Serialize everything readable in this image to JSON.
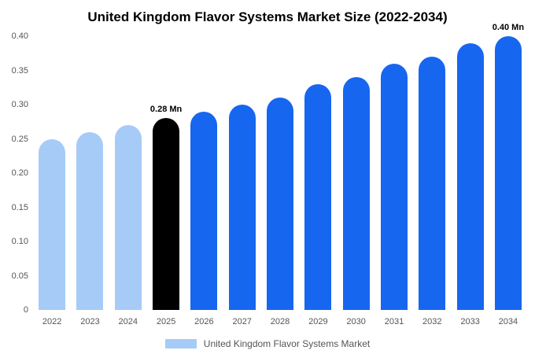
{
  "chart_data": {
    "type": "bar",
    "title": "United Kingdom Flavor Systems Market Size (2022-2034)",
    "xlabel": "",
    "ylabel": "",
    "unit": "Mn",
    "categories": [
      "2022",
      "2023",
      "2024",
      "2025",
      "2026",
      "2027",
      "2028",
      "2029",
      "2030",
      "2031",
      "2032",
      "2033",
      "2034"
    ],
    "values": [
      0.25,
      0.26,
      0.27,
      0.28,
      0.29,
      0.3,
      0.31,
      0.33,
      0.34,
      0.36,
      0.37,
      0.39,
      0.4
    ],
    "bar_colors": [
      "#a6cbf7",
      "#a6cbf7",
      "#a6cbf7",
      "#000000",
      "#1766f0",
      "#1766f0",
      "#1766f0",
      "#1766f0",
      "#1766f0",
      "#1766f0",
      "#1766f0",
      "#1766f0",
      "#1766f0"
    ],
    "bar_labels": {
      "2025": "0.28 Mn",
      "2034": "0.40 Mn"
    },
    "ylim": [
      0,
      0.4
    ],
    "yticks": [
      0,
      0.05,
      0.1,
      0.15,
      0.2,
      0.25,
      0.3,
      0.35,
      0.4
    ],
    "ytick_labels": [
      "0",
      "0.05",
      "0.10",
      "0.15",
      "0.20",
      "0.25",
      "0.30",
      "0.35",
      "0.40"
    ],
    "grid": false,
    "colors": {
      "history": "#a6cbf7",
      "current": "#000000",
      "forecast": "#1766f0"
    },
    "legend": {
      "label": "United Kingdom Flavor Systems Market",
      "swatch_color": "#a6cbf7",
      "position": "bottom"
    }
  }
}
